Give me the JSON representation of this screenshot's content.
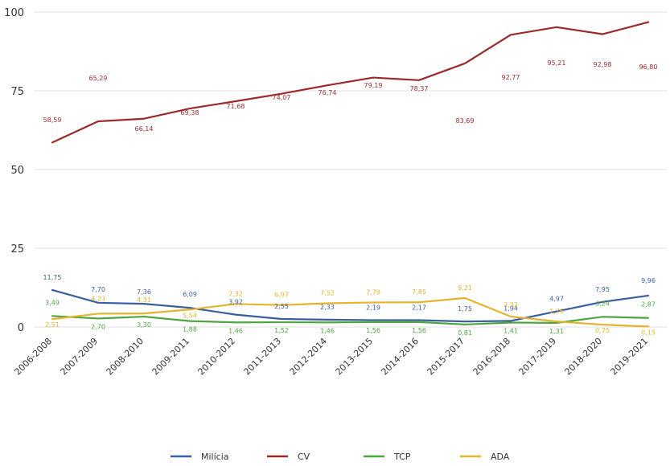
{
  "chart_data": {
    "type": "line",
    "categories": [
      "2006-2008",
      "2007-2009",
      "2008-2010",
      "2009-2011",
      "2010-2012",
      "2011-2013",
      "2012-2014",
      "2013-2015",
      "2014-2016",
      "2015-2017",
      "2016-2018",
      "2017-2019",
      "2018-2020",
      "2019-2021"
    ],
    "ylim": [
      0,
      100
    ],
    "yticks": [
      0,
      25,
      50,
      75,
      100
    ],
    "grid": true,
    "legend_position": "bottom",
    "series": [
      {
        "name": "Milícia",
        "color": "#3a5f9e",
        "values": [
          11.75,
          7.7,
          7.36,
          6.09,
          3.92,
          2.55,
          2.33,
          2.19,
          2.17,
          1.75,
          1.94,
          4.97,
          7.95,
          9.96
        ],
        "labels": [
          "11,75",
          "7,70",
          "7,36",
          "6,09",
          "3,92",
          "2,55",
          "2,33",
          "2,19",
          "2,17",
          "1,75",
          "1,94",
          "4,97",
          "7,95",
          "9,96"
        ]
      },
      {
        "name": "CV",
        "color": "#9b2a2d",
        "values": [
          58.59,
          65.29,
          66.14,
          69.38,
          71.68,
          74.07,
          76.74,
          79.19,
          78.37,
          83.69,
          92.77,
          95.21,
          92.98,
          96.8
        ],
        "labels": [
          "58,59",
          "65,29",
          "66,14",
          "69,38",
          "71,68",
          "74,07",
          "76,74",
          "79,19",
          "78,37",
          "83,69",
          "92,77",
          "95,21",
          "92,98",
          "96,80"
        ]
      },
      {
        "name": "TCP",
        "color": "#4fa542",
        "values": [
          3.49,
          2.7,
          3.3,
          1.88,
          1.46,
          1.52,
          1.46,
          1.56,
          1.56,
          0.81,
          1.41,
          1.31,
          3.24,
          2.87
        ],
        "labels": [
          "3,49",
          "2,70",
          "3,30",
          "1,88",
          "1,46",
          "1,52",
          "1,46",
          "1,56",
          "1,56",
          "0,81",
          "1,41",
          "1,31",
          "3,24",
          "2,87"
        ]
      },
      {
        "name": "ADA",
        "color": "#e3b52e",
        "values": [
          2.51,
          4.23,
          4.31,
          5.54,
          7.32,
          6.97,
          7.52,
          7.79,
          7.85,
          9.21,
          3.32,
          1.76,
          0.75,
          0.15
        ],
        "labels": [
          "2,51",
          "4,23",
          "4,31",
          "5,54",
          "7,32",
          "6,97",
          "7,52",
          "7,79",
          "7,85",
          "9,21",
          "3,32",
          "1,76",
          "0,75",
          "0,15"
        ]
      }
    ]
  }
}
